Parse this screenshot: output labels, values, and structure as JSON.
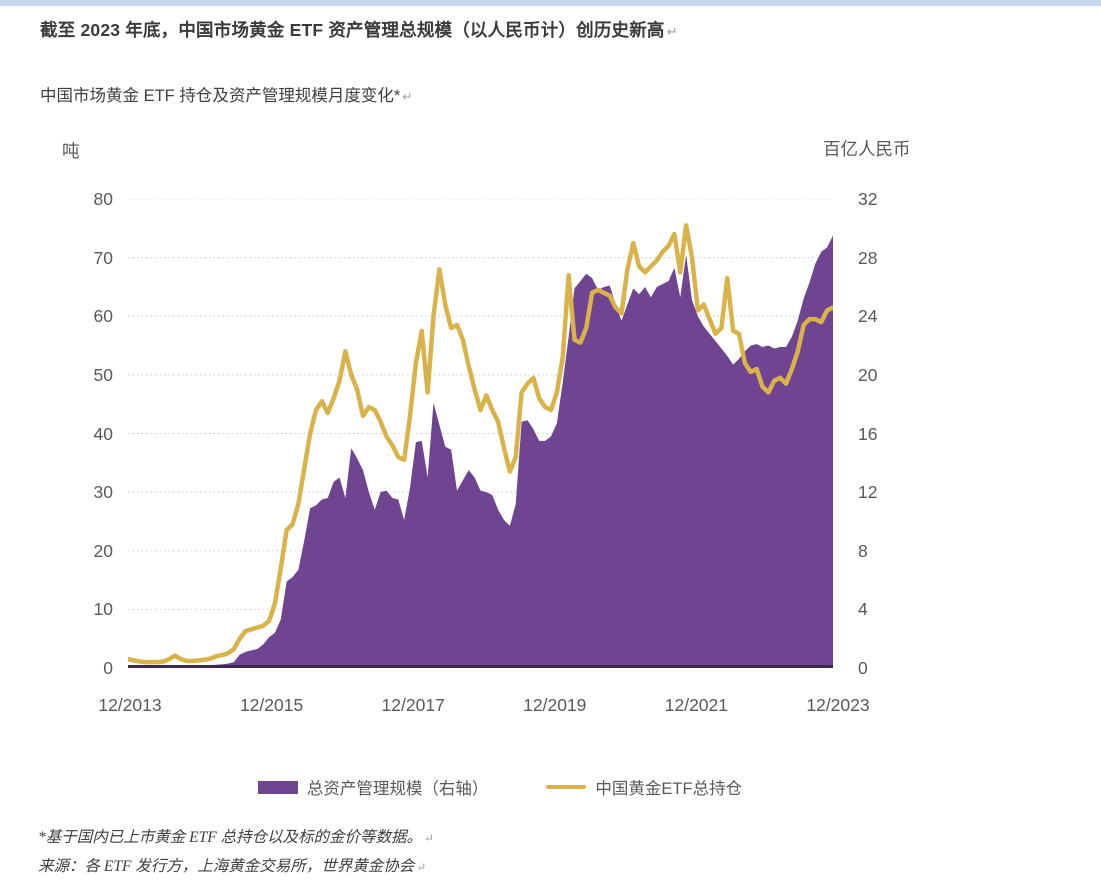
{
  "page": {
    "top_band_color": "#c9d8ef",
    "background_color": "#ffffff",
    "paragraph_mark": "↵"
  },
  "heading": {
    "text": "截至 2023 年底，中国市场黄金 ETF 资产管理总规模（以人民币计）创历史新高"
  },
  "subtitle": {
    "text": "中国市场黄金 ETF 持仓及资产管理规模月度变化*"
  },
  "chart_data": {
    "type": "area+line",
    "title": "中国市场黄金 ETF 持仓及资产管理规模月度变化*",
    "x_start": "12/2013",
    "x_end": "12/2023",
    "x_frequency": "monthly",
    "points_per_series": 121,
    "x_tick_labels": [
      "12/2013",
      "12/2015",
      "12/2017",
      "12/2019",
      "12/2021",
      "12/2023"
    ],
    "left_axis": {
      "unit_label": "吨",
      "range": [
        0,
        80
      ],
      "ticks": [
        80,
        70,
        60,
        50,
        40,
        30,
        20,
        10,
        0
      ]
    },
    "right_axis": {
      "unit_label": "百亿人民币",
      "range": [
        0,
        32
      ],
      "ticks": [
        32,
        28,
        24,
        20,
        16,
        12,
        8,
        4,
        0
      ]
    },
    "grid": {
      "horizontal_dotted": true,
      "color": "#c9c9c9"
    },
    "baseline_color": "#3a2b4d",
    "series": [
      {
        "name": "总资产管理规模（右轴）",
        "type": "area",
        "axis": "right",
        "color": "#6f4490",
        "values": [
          0.15,
          0.15,
          0.13,
          0.12,
          0.12,
          0.12,
          0.13,
          0.16,
          0.2,
          0.16,
          0.14,
          0.14,
          0.15,
          0.16,
          0.18,
          0.22,
          0.25,
          0.3,
          0.4,
          0.9,
          1.1,
          1.2,
          1.3,
          1.6,
          2.1,
          2.4,
          3.3,
          5.9,
          6.2,
          6.7,
          8.7,
          10.9,
          11.1,
          11.5,
          11.6,
          12.7,
          13.0,
          11.6,
          15.0,
          14.3,
          13.5,
          12.0,
          10.8,
          12.0,
          12.1,
          11.6,
          11.5,
          10.1,
          12.3,
          15.4,
          15.5,
          13.0,
          18.1,
          16.6,
          15.1,
          14.9,
          12.1,
          12.8,
          13.5,
          13.0,
          12.1,
          12.0,
          11.8,
          10.8,
          10.1,
          9.7,
          11.2,
          16.8,
          16.9,
          16.3,
          15.5,
          15.5,
          15.8,
          16.7,
          19.5,
          22.6,
          25.9,
          26.4,
          26.9,
          26.6,
          25.8,
          26.0,
          26.1,
          24.8,
          23.7,
          24.8,
          25.9,
          25.5,
          26.0,
          25.3,
          26.0,
          26.2,
          26.4,
          27.3,
          25.3,
          28.2,
          25.1,
          24.0,
          23.3,
          22.8,
          22.3,
          21.8,
          21.3,
          20.7,
          21.1,
          21.6,
          22.0,
          22.1,
          21.9,
          22.0,
          21.8,
          21.9,
          21.9,
          22.6,
          23.7,
          25.2,
          26.3,
          27.6,
          28.4,
          28.7,
          29.5
        ]
      },
      {
        "name": "中国黄金ETF总持仓",
        "type": "line",
        "axis": "left",
        "color": "#d9b34a",
        "values": [
          1.5,
          1.3,
          1.1,
          1.0,
          1.0,
          1.0,
          1.1,
          1.5,
          2.1,
          1.5,
          1.2,
          1.2,
          1.3,
          1.4,
          1.6,
          2.0,
          2.2,
          2.5,
          3.2,
          5.0,
          6.3,
          6.6,
          6.9,
          7.2,
          8.0,
          11,
          17,
          23.5,
          24.5,
          28,
          34,
          40,
          44,
          45.5,
          43.5,
          46,
          49,
          54,
          50,
          47.5,
          43,
          44.5,
          44,
          42,
          39.5,
          38,
          36,
          35.5,
          43,
          52,
          57.5,
          47,
          60,
          68,
          62,
          58,
          58.5,
          56,
          51.5,
          47.5,
          44,
          46.5,
          44,
          42,
          37.5,
          33.5,
          36,
          47,
          48.5,
          49.5,
          46,
          44.5,
          44,
          47,
          53,
          67,
          56,
          55.5,
          58,
          64,
          64.5,
          64,
          63.5,
          61.5,
          60.5,
          68,
          72.5,
          68.5,
          67.5,
          68.5,
          69.5,
          71,
          72,
          74,
          67.5,
          75.5,
          70,
          61,
          62,
          59.5,
          57,
          58,
          66.5,
          57.5,
          57,
          52,
          50.5,
          51,
          48,
          47,
          49,
          49.5,
          48.5,
          51,
          54,
          58.5,
          59.5,
          59.5,
          59,
          61,
          61.5
        ]
      }
    ]
  },
  "legend": {
    "items": [
      {
        "label": "总资产管理规模（右轴）",
        "swatch": "area",
        "color": "#6f4490"
      },
      {
        "label": "中国黄金ETF总持仓",
        "swatch": "line",
        "color": "#d9b34a"
      }
    ]
  },
  "footnotes": {
    "line1": "*基于国内已上市黄金 ETF 总持仓以及标的金价等数据。",
    "line2": "来源：各 ETF 发行方，上海黄金交易所，世界黄金协会"
  }
}
